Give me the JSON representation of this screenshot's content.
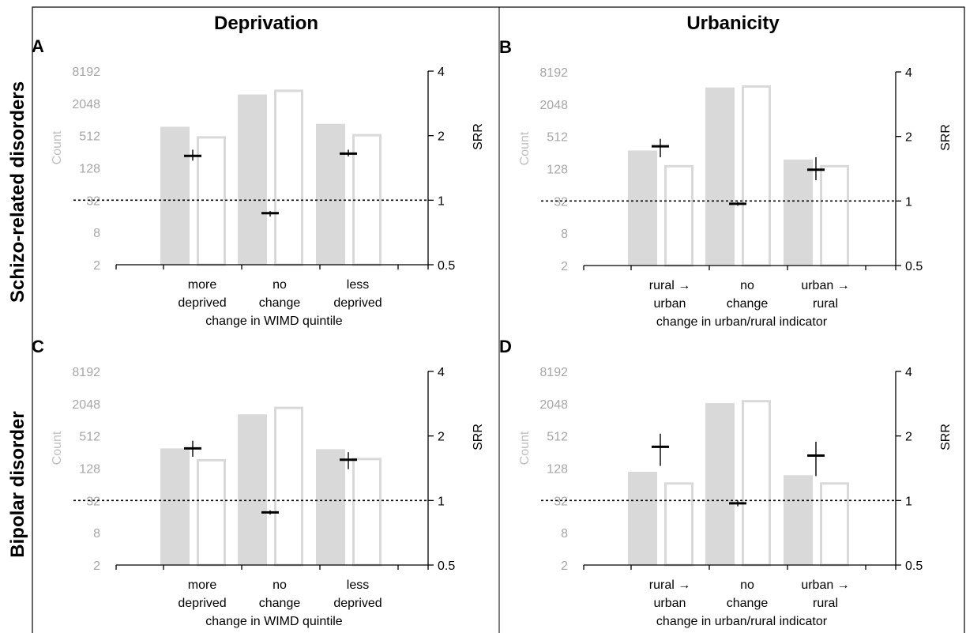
{
  "figure": {
    "columns": [
      "Deprivation",
      "Urbanicity"
    ],
    "rows": [
      "Schizo-related disorders",
      "Bipolar disorder"
    ]
  },
  "colors": {
    "filled_bar": "#d9d9d9",
    "outline_bar": "#d9d9d9",
    "marker": "#000000",
    "reference_line": "#000000",
    "left_axis_text": "#a6a6a6"
  },
  "chart_data": [
    {
      "panel": "A",
      "type": "bar",
      "categories": [
        "more deprived",
        "no change",
        "less deprived"
      ],
      "xlabel": "change in WIMD  quintile",
      "ylabel_left": "Count",
      "ylabel_right": "SRR",
      "left_axis": {
        "scale": "log2",
        "ticks": [
          "2",
          "8",
          "32",
          "128",
          "512",
          "2048",
          "8192"
        ],
        "ylim": [
          2,
          8192
        ]
      },
      "right_axis": {
        "scale": "log2",
        "ticks": [
          "0.5",
          "1",
          "2",
          "4"
        ],
        "ylim": [
          0.5,
          4
        ]
      },
      "series": [
        {
          "style": "filled",
          "values": [
            750,
            3000,
            850
          ]
        },
        {
          "style": "outline",
          "values": [
            500,
            3700,
            550
          ]
        },
        {
          "style": "marker",
          "axis": "right",
          "values": [
            1.61,
            0.87,
            1.65
          ],
          "ci_low": [
            1.53,
            0.84,
            1.6
          ],
          "ci_high": [
            1.72,
            0.89,
            1.72
          ]
        }
      ],
      "reference_line": 1
    },
    {
      "panel": "B",
      "type": "bar",
      "categories": [
        "rural → urban",
        "no change",
        "urban → rural"
      ],
      "xlabel": "change in urban/rural indicator",
      "ylabel_left": "Count",
      "ylabel_right": "SRR",
      "left_axis": {
        "scale": "log2",
        "ticks": [
          "2",
          "8",
          "32",
          "128",
          "512",
          "2048",
          "8192"
        ],
        "ylim": [
          2,
          8192
        ]
      },
      "right_axis": {
        "scale": "log2",
        "ticks": [
          "0.5",
          "1",
          "2",
          "4"
        ],
        "ylim": [
          0.5,
          4
        ]
      },
      "series": [
        {
          "style": "filled",
          "values": [
            280,
            4200,
            190
          ]
        },
        {
          "style": "outline",
          "values": [
            150,
            4600,
            150
          ]
        },
        {
          "style": "marker",
          "axis": "right",
          "values": [
            1.8,
            0.97,
            1.4
          ],
          "ci_low": [
            1.6,
            0.95,
            1.25
          ],
          "ci_high": [
            1.95,
            0.99,
            1.6
          ]
        }
      ],
      "reference_line": 1
    },
    {
      "panel": "C",
      "type": "bar",
      "categories": [
        "more deprived",
        "no change",
        "less deprived"
      ],
      "xlabel": "change in WIMD  quintile",
      "ylabel_left": "Count",
      "ylabel_right": "SRR",
      "left_axis": {
        "scale": "log2",
        "ticks": [
          "2",
          "8",
          "32",
          "128",
          "512",
          "2048",
          "8192"
        ],
        "ylim": [
          2,
          8192
        ]
      },
      "right_axis": {
        "scale": "log2",
        "ticks": [
          "0.5",
          "1",
          "2",
          "4"
        ],
        "ylim": [
          0.5,
          4
        ]
      },
      "series": [
        {
          "style": "filled",
          "values": [
            300,
            1300,
            290
          ]
        },
        {
          "style": "outline",
          "values": [
            190,
            1800,
            200
          ]
        },
        {
          "style": "marker",
          "axis": "right",
          "values": [
            1.75,
            0.88,
            1.55
          ],
          "ci_low": [
            1.6,
            0.86,
            1.4
          ],
          "ci_high": [
            1.9,
            0.9,
            1.68
          ]
        }
      ],
      "reference_line": 1
    },
    {
      "panel": "D",
      "type": "bar",
      "categories": [
        "rural → urban",
        "no change",
        "urban → rural"
      ],
      "xlabel": "change in urban/rural indicator",
      "ylabel_left": "Count",
      "ylabel_right": "SRR",
      "left_axis": {
        "scale": "log2",
        "ticks": [
          "2",
          "8",
          "32",
          "128",
          "512",
          "2048",
          "8192"
        ],
        "ylim": [
          2,
          8192
        ]
      },
      "right_axis": {
        "scale": "log2",
        "ticks": [
          "0.5",
          "1",
          "2",
          "4"
        ],
        "ylim": [
          0.5,
          4
        ]
      },
      "series": [
        {
          "style": "filled",
          "values": [
            110,
            2100,
            95
          ]
        },
        {
          "style": "outline",
          "values": [
            70,
            2400,
            70
          ]
        },
        {
          "style": "marker",
          "axis": "right",
          "values": [
            1.78,
            0.97,
            1.62
          ],
          "ci_low": [
            1.45,
            0.94,
            1.3
          ],
          "ci_high": [
            2.05,
            1.0,
            1.88
          ]
        }
      ],
      "reference_line": 1
    }
  ]
}
